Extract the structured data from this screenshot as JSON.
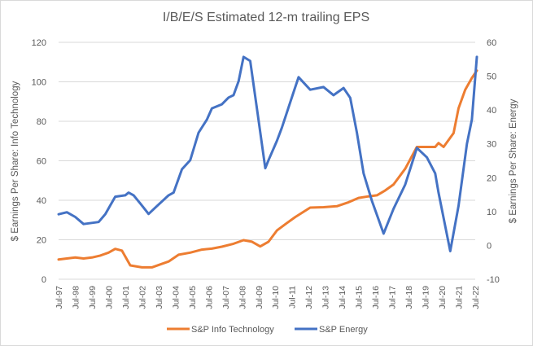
{
  "chart_data": {
    "type": "line",
    "title": "I/B/E/S Estimated 12-m trailing EPS",
    "xlabel": "",
    "ylabel": "$ Earnings Per Share: Info Technology",
    "y2label": "$ Earnings Per Share: Energy",
    "ylim": [
      0,
      120
    ],
    "y2lim": [
      -10,
      60
    ],
    "yticks": [
      "0",
      "20",
      "40",
      "60",
      "80",
      "100",
      "120"
    ],
    "y2ticks": [
      "-10",
      "0",
      "10",
      "20",
      "30",
      "40",
      "50",
      "60"
    ],
    "xlim": [
      1997.5,
      2022.5
    ],
    "xticks": [
      "Jul-97",
      "Jul-98",
      "Jul-99",
      "Jul-00",
      "Jul-01",
      "Jul-02",
      "Jul-03",
      "Jul-04",
      "Jul-05",
      "Jul-06",
      "Jul-07",
      "Jul-08",
      "Jul-09",
      "Jul-10",
      "Jul-11",
      "Jul-12",
      "Jul-13",
      "Jul-14",
      "Jul-15",
      "Jul-16",
      "Jul-17",
      "Jul-18",
      "Jul-19",
      "Jul-20",
      "Jul-21",
      "Jul-22"
    ],
    "grid": true,
    "legend_position": "bottom",
    "series": [
      {
        "name": "S&P Info Technology",
        "axis": "left",
        "color": "#ED7D31",
        "x": [
          1997.5,
          1998,
          1998.5,
          1999,
          1999.5,
          2000,
          2000.5,
          2000.9,
          2001.3,
          2001.8,
          2002.5,
          2003.1,
          2003.6,
          2004.1,
          2004.7,
          2005.4,
          2006.1,
          2006.7,
          2007.3,
          2008,
          2008.6,
          2009.1,
          2009.6,
          2010.1,
          2010.6,
          2011.2,
          2011.7,
          2012.6,
          2013.4,
          2014.2,
          2014.9,
          2015.5,
          2016.1,
          2016.6,
          2017.1,
          2017.6,
          2018.3,
          2019,
          2019.6,
          2020.1,
          2020.3,
          2020.6,
          2021.2,
          2021.5,
          2021.9,
          2022.3,
          2022.6
        ],
        "y": [
          10,
          10.5,
          11,
          10.5,
          11,
          12,
          13.5,
          15.4,
          14.5,
          7,
          6,
          6,
          7.5,
          9,
          12.4,
          13.5,
          15,
          15.5,
          16.5,
          18,
          19.8,
          19,
          16.6,
          19,
          24.7,
          28.5,
          31.5,
          36.3,
          36.5,
          37,
          39,
          41.2,
          42,
          42.5,
          45,
          48,
          56,
          67,
          67,
          67,
          69,
          67,
          74,
          86.6,
          96,
          102,
          105.7
        ]
      },
      {
        "name": "S&P Energy",
        "axis": "right",
        "color": "#4472C4",
        "x": [
          1997.5,
          1998,
          1998.5,
          1999,
          1999.9,
          2000.3,
          2000.9,
          2001.5,
          2001.7,
          2002,
          2002.4,
          2002.9,
          2003.4,
          2004.1,
          2004.4,
          2004.9,
          2005.4,
          2005.9,
          2006.4,
          2006.7,
          2007.3,
          2007.7,
          2008,
          2008.3,
          2008.6,
          2009,
          2009.4,
          2009.9,
          2010.1,
          2010.6,
          2010.9,
          2011.6,
          2011.9,
          2012.6,
          2013.4,
          2014,
          2014.6,
          2015,
          2015.4,
          2015.8,
          2016.3,
          2017,
          2017.6,
          2018.3,
          2019,
          2019.6,
          2020.1,
          2020.3,
          2021,
          2021.5,
          2022,
          2022.3,
          2022.6
        ],
        "y": [
          9.2,
          9.8,
          8.4,
          6.3,
          6.9,
          9.2,
          14.4,
          14.8,
          15.6,
          14.8,
          12.4,
          9.3,
          11.6,
          14.8,
          15.6,
          22.5,
          25.2,
          33.3,
          37.2,
          40.5,
          41.7,
          43.7,
          44.4,
          48.5,
          55.7,
          54.5,
          40.5,
          22.8,
          25.2,
          30.9,
          34.8,
          45.3,
          49.7,
          46,
          46.8,
          44.4,
          46.5,
          43.6,
          33.3,
          21.3,
          13.2,
          3.5,
          10.8,
          18,
          28.8,
          26,
          21.3,
          15.6,
          -1.7,
          11.7,
          30,
          37.2,
          55.7
        ]
      }
    ]
  }
}
